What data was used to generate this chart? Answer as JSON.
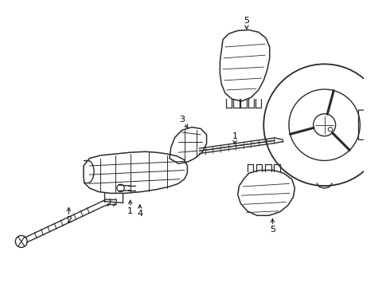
{
  "background_color": "#ffffff",
  "line_color": "#2a2a2a",
  "label_color": "#000000",
  "fig_width": 4.9,
  "fig_height": 3.6,
  "dpi": 100,
  "xlim": [
    0,
    490
  ],
  "ylim": [
    0,
    360
  ]
}
